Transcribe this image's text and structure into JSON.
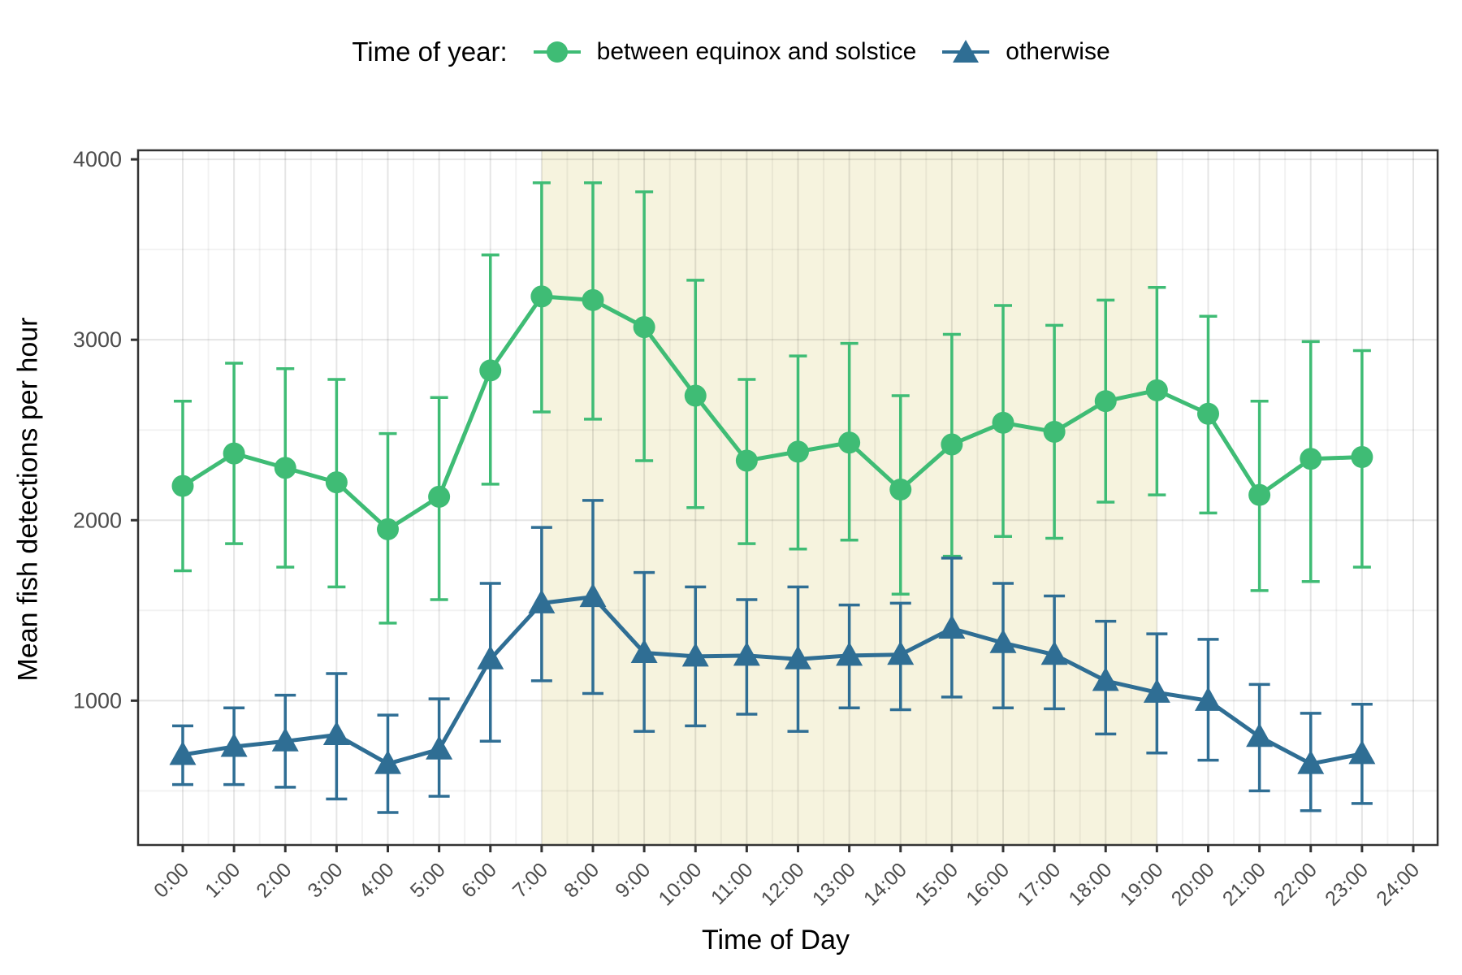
{
  "legend": {
    "title": "Time of year:"
  },
  "chart_data": {
    "type": "line",
    "xlabel": "Time of Day",
    "ylabel": "Mean fish detections per hour",
    "x_categories": [
      "0:00",
      "1:00",
      "2:00",
      "3:00",
      "4:00",
      "5:00",
      "6:00",
      "7:00",
      "8:00",
      "9:00",
      "10:00",
      "11:00",
      "12:00",
      "13:00",
      "14:00",
      "15:00",
      "16:00",
      "17:00",
      "18:00",
      "19:00",
      "20:00",
      "21:00",
      "22:00",
      "23:00",
      "24:00"
    ],
    "yticks": [
      1000,
      2000,
      3000,
      4000
    ],
    "ytick_labels": [
      "1000",
      "2000",
      "3000",
      "4000"
    ],
    "minor_yticks": [
      500,
      1500,
      2500,
      3500
    ],
    "ylim": [
      200,
      4050
    ],
    "grid": "on",
    "legend_position": "top",
    "shaded_region": {
      "from_hour": 7,
      "to_hour": 19,
      "color": "#f6f3de"
    },
    "series": [
      {
        "name": "between equinox and solstice",
        "marker": "circle",
        "color": "#3fbc75",
        "values": [
          2190,
          2370,
          2290,
          2210,
          1950,
          2130,
          2830,
          3240,
          3220,
          3070,
          2690,
          2330,
          2380,
          2430,
          2170,
          2420,
          2540,
          2490,
          2660,
          2720,
          2590,
          2140,
          2340,
          2350
        ],
        "err_low": [
          1720,
          1870,
          1740,
          1630,
          1430,
          1560,
          2200,
          2600,
          2560,
          2330,
          2070,
          1870,
          1840,
          1890,
          1590,
          1800,
          1910,
          1900,
          2100,
          2140,
          2040,
          1610,
          1660,
          1740
        ],
        "err_high": [
          2660,
          2870,
          2840,
          2780,
          2480,
          2680,
          3470,
          3870,
          3870,
          3820,
          3330,
          2780,
          2910,
          2980,
          2690,
          3030,
          3190,
          3080,
          3220,
          3290,
          3130,
          2660,
          2990,
          2940
        ]
      },
      {
        "name": "otherwise",
        "marker": "triangle",
        "color": "#2f6e94",
        "values": [
          700,
          745,
          775,
          810,
          650,
          730,
          1230,
          1540,
          1575,
          1265,
          1245,
          1250,
          1230,
          1250,
          1255,
          1400,
          1320,
          1255,
          1110,
          1045,
          1000,
          800,
          650,
          705
        ],
        "err_low": [
          535,
          535,
          520,
          455,
          380,
          470,
          775,
          1110,
          1040,
          830,
          860,
          925,
          830,
          960,
          950,
          1020,
          960,
          955,
          815,
          710,
          670,
          500,
          390,
          430
        ],
        "err_high": [
          860,
          960,
          1030,
          1150,
          920,
          1010,
          1650,
          1960,
          2110,
          1710,
          1630,
          1560,
          1630,
          1530,
          1540,
          1790,
          1650,
          1580,
          1440,
          1370,
          1340,
          1090,
          930,
          980
        ]
      }
    ]
  },
  "colors": {
    "panel_border": "#333333",
    "tick_label": "#4d4d4d",
    "major_grid": "rgba(0,0,0,0.10)",
    "minor_grid": "rgba(0,0,0,0.05)"
  }
}
